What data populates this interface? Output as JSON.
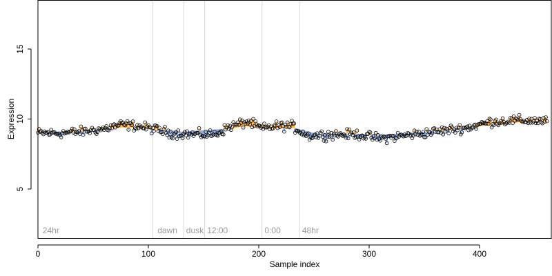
{
  "chart_data": {
    "type": "scatter",
    "title": "",
    "xlabel": "Sample index",
    "ylabel": "Expression",
    "xlim": [
      0,
      465
    ],
    "ylim": [
      1.5,
      18.5
    ],
    "xticks": [
      0,
      100,
      200,
      300,
      400
    ],
    "yticks": [
      5,
      10,
      15
    ],
    "grid": false,
    "colors": {
      "upper_bar": "#ffb04a",
      "lower_bar": "#93b1e0",
      "boundary": "#d8d8d8",
      "point_edge": "#000000",
      "region_label": "#9a9a9a"
    },
    "region_boundaries": [
      104,
      132,
      151,
      203,
      237
    ],
    "region_labels": [
      {
        "x": 3,
        "text": "24hr"
      },
      {
        "x": 107,
        "text": "dawn"
      },
      {
        "x": 133,
        "text": "dusk"
      },
      {
        "x": 152,
        "text": "12:00"
      },
      {
        "x": 204,
        "text": "0:00"
      },
      {
        "x": 238,
        "text": "48hr"
      }
    ],
    "series_points": {
      "mean_anchors": [
        [
          0,
          9.0
        ],
        [
          20,
          9.0
        ],
        [
          40,
          9.1
        ],
        [
          60,
          9.3
        ],
        [
          75,
          9.6
        ],
        [
          90,
          9.5
        ],
        [
          104,
          9.3
        ],
        [
          120,
          9.0
        ],
        [
          140,
          8.9
        ],
        [
          160,
          8.9
        ],
        [
          175,
          9.5
        ],
        [
          190,
          9.8
        ],
        [
          203,
          9.3
        ],
        [
          215,
          9.5
        ],
        [
          230,
          9.5
        ],
        [
          245,
          8.8
        ],
        [
          265,
          8.9
        ],
        [
          290,
          8.9
        ],
        [
          310,
          8.6
        ],
        [
          330,
          8.8
        ],
        [
          350,
          9.0
        ],
        [
          370,
          9.2
        ],
        [
          390,
          9.4
        ],
        [
          410,
          9.8
        ],
        [
          430,
          9.9
        ],
        [
          450,
          9.9
        ],
        [
          462,
          9.8
        ]
      ],
      "reference_anchors": [
        [
          0,
          9.1
        ],
        [
          30,
          9.1
        ],
        [
          60,
          9.3
        ],
        [
          75,
          9.4
        ],
        [
          90,
          9.4
        ],
        [
          104,
          9.3
        ],
        [
          130,
          9.1
        ],
        [
          150,
          9.2
        ],
        [
          170,
          9.3
        ],
        [
          190,
          9.5
        ],
        [
          210,
          9.3
        ],
        [
          230,
          9.4
        ],
        [
          250,
          9.0
        ],
        [
          280,
          9.0
        ],
        [
          300,
          8.9
        ],
        [
          320,
          8.9
        ],
        [
          350,
          9.1
        ],
        [
          380,
          9.3
        ],
        [
          410,
          9.6
        ],
        [
          440,
          9.8
        ],
        [
          462,
          9.8
        ]
      ],
      "count": 462,
      "spread": 0.3
    }
  }
}
